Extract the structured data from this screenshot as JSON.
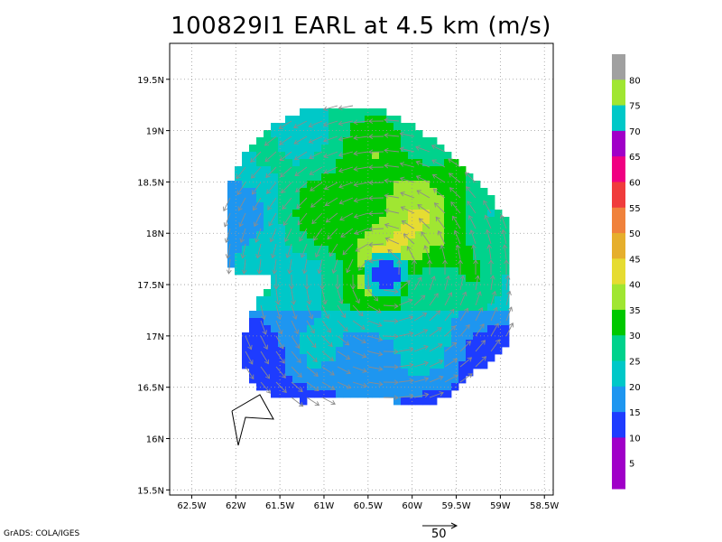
{
  "title": "100829I1 EARL at 4.5 km (m/s)",
  "credit": "GrADS: COLA/IGES",
  "reference_vector_label": "50",
  "axes": {
    "x_ticks": [
      "62.5W",
      "62W",
      "61.5W",
      "61W",
      "60.5W",
      "60W",
      "59.5W",
      "59W",
      "58.5W"
    ],
    "x_values": [
      -62.5,
      -62,
      -61.5,
      -61,
      -60.5,
      -60,
      -59.5,
      -59,
      -58.5
    ],
    "y_ticks": [
      "19.5N",
      "19N",
      "18.5N",
      "18N",
      "17.5N",
      "17N",
      "16.5N",
      "16N",
      "15.5N"
    ],
    "y_values": [
      19.5,
      19,
      18.5,
      18,
      17.5,
      17,
      16.5,
      16,
      15.5
    ],
    "x_range": [
      -62.75,
      -58.4
    ],
    "y_range": [
      15.45,
      19.85
    ],
    "grid": true
  },
  "colorbar": {
    "labels": [
      "80",
      "75",
      "70",
      "65",
      "60",
      "55",
      "50",
      "45",
      "40",
      "35",
      "30",
      "25",
      "20",
      "15",
      "10",
      "5"
    ],
    "colors": [
      "#a0a0a0",
      "#a0e632",
      "#00c8c8",
      "#a000c8",
      "#f00082",
      "#f03c3c",
      "#f0823c",
      "#e6af2d",
      "#e6dc32",
      "#a0e632",
      "#00c800",
      "#00d28c",
      "#00c8c8",
      "#1e96f0",
      "#1e3cff",
      "#a000c8",
      "#a000c8"
    ]
  },
  "chart_data": {
    "type": "heatmap",
    "title": "100829I1 EARL at 4.5 km (m/s)",
    "storm_center": {
      "lon": -60.3,
      "lat": 17.6,
      "label": "EARL"
    },
    "center_min_speed": 12,
    "max_speed_region": {
      "lon": -60.05,
      "lat": 17.95,
      "speed": 42
    },
    "wind_circulation": "cyclonic",
    "reference_vector": 50
  }
}
